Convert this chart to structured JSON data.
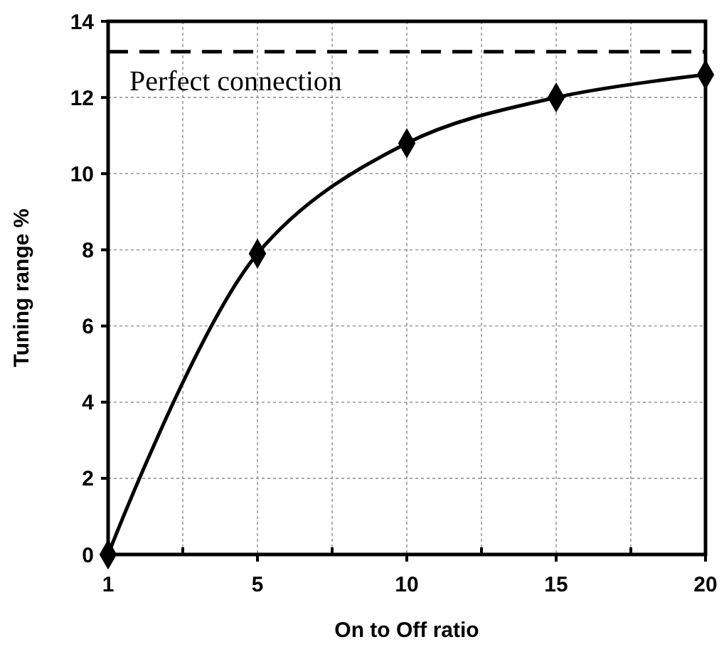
{
  "chart_data": {
    "type": "line",
    "xlabel": "On to Off ratio",
    "ylabel": "Tuning range %",
    "categories": [
      "1",
      "5",
      "10",
      "15",
      "20"
    ],
    "series": [
      {
        "color": "#000000",
        "values": [
          0,
          7.9,
          10.8,
          12.0,
          12.6
        ]
      }
    ],
    "ylim": [
      0,
      14
    ],
    "yticks": [
      0,
      2,
      4,
      6,
      8,
      10,
      12,
      14
    ],
    "grid": true,
    "marker": "diamond",
    "line_style": "solid",
    "ref_lines": [
      {
        "axis": "y",
        "value": 13.2,
        "label": "Perfect connection",
        "line_style": "dashed",
        "color": "#000000"
      }
    ]
  }
}
